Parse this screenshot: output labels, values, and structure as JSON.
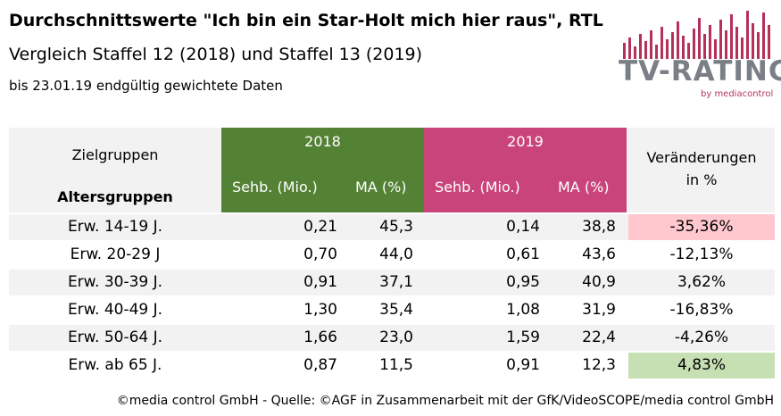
{
  "header": {
    "title": "Durchschnittswerte \"Ich bin ein Star-Holt mich hier raus\", RTL",
    "subtitle": "Vergleich Staffel 12 (2018) und Staffel 13 (2019)",
    "note": "bis 23.01.19 endgültig gewichtete Daten"
  },
  "logo": {
    "brand": "TV-RATINGS",
    "by": "by mediacontrol",
    "color": "#b5315a"
  },
  "table": {
    "col_zielgruppen": "Zielgruppen",
    "col_altersgruppen": "Altersgruppen",
    "year_2018": "2018",
    "year_2019": "2019",
    "sehb": "Sehb. (Mio.)",
    "ma": "MA (%)",
    "change_line1": "Veränderungen",
    "change_line2": "in %",
    "color_2018": "#548235",
    "color_2019": "#c9447b",
    "rows": [
      {
        "group": "Erw. 14-19 J.",
        "s18": "0,21",
        "m18": "45,3",
        "s19": "0,14",
        "m19": "38,8",
        "chg": "-35,36%"
      },
      {
        "group": "Erw. 20-29 J",
        "s18": "0,70",
        "m18": "44,0",
        "s19": "0,61",
        "m19": "43,6",
        "chg": "-12,13%"
      },
      {
        "group": "Erw. 30-39 J.",
        "s18": "0,91",
        "m18": "37,1",
        "s19": "0,95",
        "m19": "40,9",
        "chg": "3,62%"
      },
      {
        "group": "Erw. 40-49 J.",
        "s18": "1,30",
        "m18": "35,4",
        "s19": "1,08",
        "m19": "31,9",
        "chg": "-16,83%"
      },
      {
        "group": "Erw. 50-64 J.",
        "s18": "1,66",
        "m18": "23,0",
        "s19": "1,59",
        "m19": "22,4",
        "chg": "-4,26%"
      },
      {
        "group": "Erw. ab 65 J.",
        "s18": "0,87",
        "m18": "11,5",
        "s19": "0,91",
        "m19": "12,3",
        "chg": "4,83%"
      }
    ]
  },
  "footer": "©media control GmbH - Quelle: ©AGF in Zusammenarbeit mit der GfK/VideoSCOPE/media control GmbH"
}
